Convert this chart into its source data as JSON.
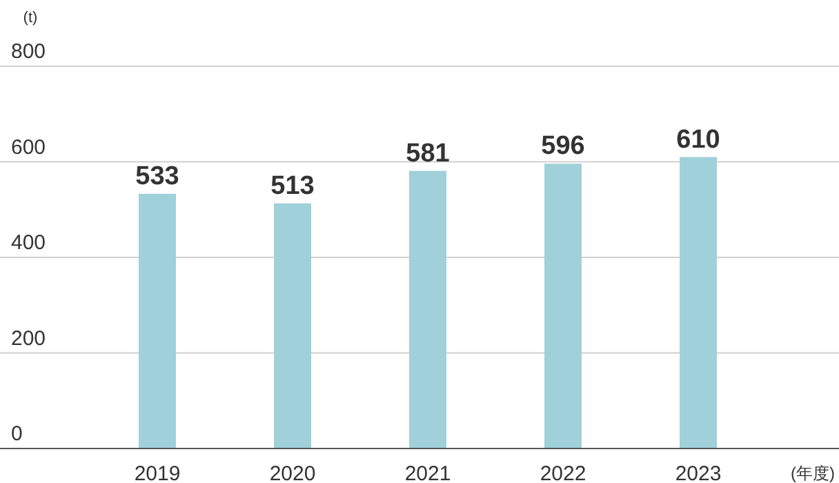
{
  "chart_data": {
    "type": "bar",
    "ylabel": "(t)",
    "xlabel": "(年度)",
    "categories": [
      "2019",
      "2020",
      "2021",
      "2022",
      "2023"
    ],
    "values": [
      533,
      513,
      581,
      596,
      610
    ],
    "color": "#a0d0d9",
    "ylim": [
      0,
      800
    ],
    "yticks": [
      0,
      200,
      400,
      600,
      800
    ],
    "grid": "y",
    "data_labels": true
  }
}
